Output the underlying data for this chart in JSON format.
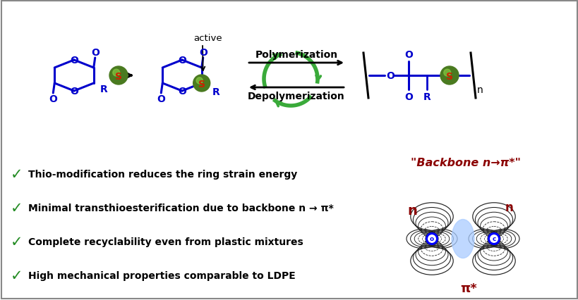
{
  "bg_color": "#ffffff",
  "border_color": "#888888",
  "blue": "#0000cc",
  "dark_red": "#8B0000",
  "green": "#228B22",
  "black": "#000000",
  "bullet_color": "#228B22",
  "bullet_points": [
    "Thio-modification reduces the ring strain energy",
    "Minimal transthioesterification due to backbone n → π*",
    "Complete recyclability even from plastic mixtures",
    "High mechanical properties comparable to LDPE"
  ],
  "polymerization_label": "Polymerization",
  "depolymerization_label": "Depolymerization",
  "active_label": "active",
  "backbone_label": "\"Backbone n→π*\""
}
